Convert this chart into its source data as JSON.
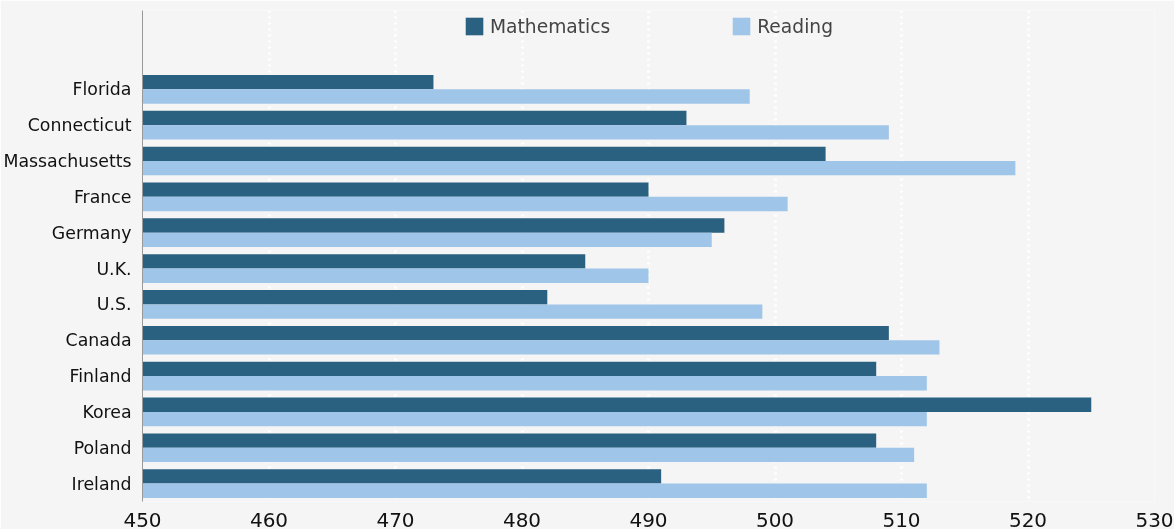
{
  "chart_data": {
    "type": "bar",
    "orientation": "horizontal",
    "categories": [
      "Florida",
      "Connecticut",
      "Massachusetts",
      "France",
      "Germany",
      "U.K.",
      "U.S.",
      "Canada",
      "Finland",
      "Korea",
      "Poland",
      "Ireland"
    ],
    "series": [
      {
        "name": "Mathematics",
        "color": "#2a6080",
        "values": [
          473,
          493,
          504,
          490,
          496,
          485,
          482,
          509,
          508,
          525,
          508,
          491
        ]
      },
      {
        "name": "Reading",
        "color": "#9fc5e8",
        "values": [
          498,
          509,
          519,
          501,
          495,
          490,
          499,
          513,
          512,
          512,
          511,
          512
        ]
      }
    ],
    "xlim": [
      450,
      530
    ],
    "xticks": [
      450,
      460,
      470,
      480,
      490,
      500,
      510,
      520,
      530
    ],
    "grid": "x",
    "legend": "top"
  }
}
